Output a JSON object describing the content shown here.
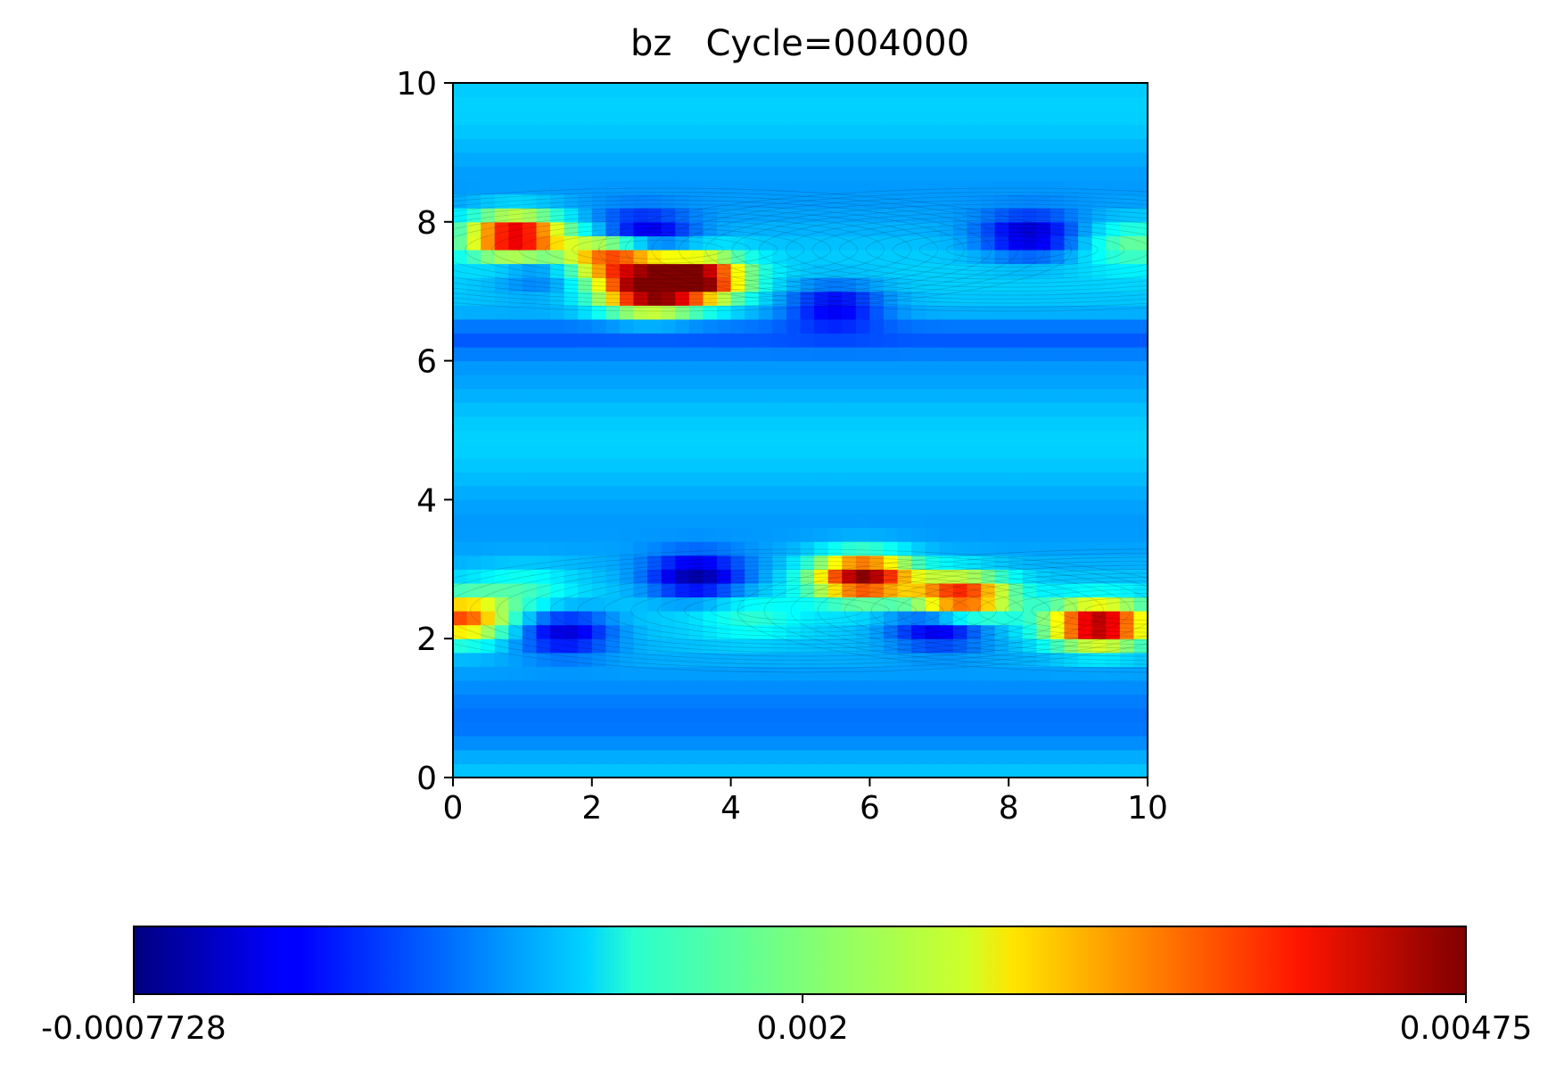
{
  "chart_data": {
    "type": "heatmap",
    "title": "bz   Cycle=004000",
    "xlabel": "",
    "ylabel": "",
    "xlim": [
      0,
      10
    ],
    "ylim": [
      0,
      10
    ],
    "xticks": [
      "0",
      "2",
      "4",
      "6",
      "8",
      "10"
    ],
    "yticks": [
      "0",
      "2",
      "4",
      "6",
      "8",
      "10"
    ],
    "colormap": "jet",
    "grid": "off",
    "contour_lines": "thin dark overlay",
    "colorbar": {
      "orientation": "horizontal",
      "placement": "bottom",
      "min": -0.0007728,
      "max": 0.00475,
      "tick_labels": [
        "-0.0007728",
        "0.002",
        "0.00475"
      ],
      "tick_values": [
        -0.0007728,
        0.002,
        0.00475
      ]
    },
    "features": [
      {
        "x": 0.9,
        "y": 7.8,
        "value": 0.0045
      },
      {
        "x": 2.3,
        "y": 7.5,
        "value": 0.0038
      },
      {
        "x": 3.5,
        "y": 7.2,
        "value": 0.0045
      },
      {
        "x": 2.8,
        "y": 7.0,
        "value": 0.0042
      },
      {
        "x": 2.7,
        "y": 7.8,
        "value": -0.0007
      },
      {
        "x": 1.3,
        "y": 7.3,
        "value": 0.0002
      },
      {
        "x": 5.5,
        "y": 6.8,
        "value": -0.0002
      },
      {
        "x": 8.3,
        "y": 7.8,
        "value": -0.0004
      },
      {
        "x": 9.8,
        "y": 7.7,
        "value": 0.0018
      },
      {
        "x": 0.1,
        "y": 2.3,
        "value": 0.0035
      },
      {
        "x": 1.6,
        "y": 2.1,
        "value": -0.0004
      },
      {
        "x": 3.5,
        "y": 2.9,
        "value": -0.0006
      },
      {
        "x": 5.9,
        "y": 2.9,
        "value": 0.0046
      },
      {
        "x": 7.3,
        "y": 2.6,
        "value": 0.0041
      },
      {
        "x": 7.0,
        "y": 2.2,
        "value": -0.0006
      },
      {
        "x": 9.3,
        "y": 2.2,
        "value": 0.0046
      },
      {
        "x": 1.0,
        "y": 2.7,
        "value": 0.0015
      },
      {
        "x": 4.3,
        "y": 2.3,
        "value": 0.0014
      }
    ]
  }
}
